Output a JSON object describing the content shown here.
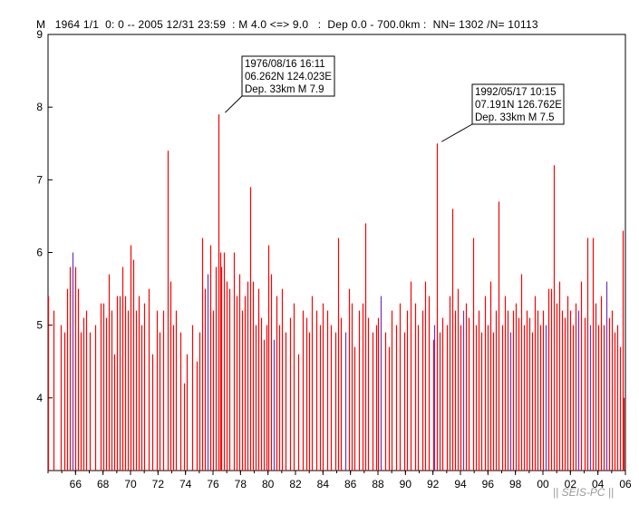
{
  "header": {
    "text": "M   1964 1/1  0: 0 -- 2005 12/31 23:59  : M 4.0 <=> 9.0   :  Dep 0.0 - 700.0km :  NN= 1302 /N= 10113"
  },
  "credit": {
    "text": "|| SEIS-PC ||"
  },
  "chart_data": {
    "type": "bar",
    "title": "",
    "xlabel": "",
    "ylabel": "M",
    "xlim": [
      1964.0,
      2006.0
    ],
    "ylim": [
      3,
      9
    ],
    "x_ticks": [
      {
        "value": 1966,
        "label": "66"
      },
      {
        "value": 1968,
        "label": "68"
      },
      {
        "value": 1970,
        "label": "70"
      },
      {
        "value": 1972,
        "label": "72"
      },
      {
        "value": 1974,
        "label": "74"
      },
      {
        "value": 1976,
        "label": "76"
      },
      {
        "value": 1978,
        "label": "78"
      },
      {
        "value": 1980,
        "label": "80"
      },
      {
        "value": 1982,
        "label": "82"
      },
      {
        "value": 1984,
        "label": "84"
      },
      {
        "value": 1986,
        "label": "86"
      },
      {
        "value": 1988,
        "label": "88"
      },
      {
        "value": 1990,
        "label": "90"
      },
      {
        "value": 1992,
        "label": "92"
      },
      {
        "value": 1994,
        "label": "94"
      },
      {
        "value": 1996,
        "label": "96"
      },
      {
        "value": 1998,
        "label": "98"
      },
      {
        "value": 2000,
        "label": "00"
      },
      {
        "value": 2002,
        "label": "02"
      },
      {
        "value": 2004,
        "label": "04"
      },
      {
        "value": 2006,
        "label": "06"
      }
    ],
    "y_ticks": [
      {
        "value": 4,
        "label": "4"
      },
      {
        "value": 5,
        "label": "5"
      },
      {
        "value": 6,
        "label": "6"
      },
      {
        "value": 7,
        "label": "7"
      },
      {
        "value": 8,
        "label": "8"
      },
      {
        "value": 9,
        "label": "9"
      }
    ],
    "colors": {
      "shallow": "#ff0000",
      "intermediate": "#7030c0",
      "axis": "#000000"
    },
    "events": [
      [
        1964.0,
        5.4,
        "s"
      ],
      [
        1964.4,
        5.2,
        "s"
      ],
      [
        1964.9,
        5.0,
        "s"
      ],
      [
        1965.2,
        4.9,
        "s"
      ],
      [
        1965.4,
        5.5,
        "s"
      ],
      [
        1965.6,
        5.8,
        "s"
      ],
      [
        1965.8,
        6.0,
        "i"
      ],
      [
        1966.0,
        5.8,
        "s"
      ],
      [
        1966.2,
        5.5,
        "s"
      ],
      [
        1966.4,
        4.9,
        "s"
      ],
      [
        1966.6,
        5.1,
        "s"
      ],
      [
        1966.8,
        5.2,
        "s"
      ],
      [
        1967.0,
        4.9,
        "s"
      ],
      [
        1967.4,
        5.0,
        "s"
      ],
      [
        1967.8,
        5.3,
        "s"
      ],
      [
        1968.0,
        5.3,
        "s"
      ],
      [
        1968.2,
        5.1,
        "s"
      ],
      [
        1968.4,
        5.7,
        "s"
      ],
      [
        1968.6,
        5.2,
        "s"
      ],
      [
        1968.8,
        4.6,
        "s"
      ],
      [
        1969.0,
        5.4,
        "s"
      ],
      [
        1969.2,
        5.4,
        "s"
      ],
      [
        1969.4,
        5.8,
        "s"
      ],
      [
        1969.6,
        5.4,
        "s"
      ],
      [
        1969.8,
        5.2,
        "s"
      ],
      [
        1970.0,
        6.1,
        "s"
      ],
      [
        1970.2,
        5.9,
        "s"
      ],
      [
        1970.4,
        5.2,
        "s"
      ],
      [
        1970.6,
        5.4,
        "s"
      ],
      [
        1970.8,
        5.0,
        "s"
      ],
      [
        1971.0,
        5.3,
        "s"
      ],
      [
        1971.3,
        5.5,
        "s"
      ],
      [
        1971.6,
        4.6,
        "s"
      ],
      [
        1971.9,
        5.2,
        "s"
      ],
      [
        1972.1,
        4.9,
        "s"
      ],
      [
        1972.4,
        5.2,
        "s"
      ],
      [
        1972.7,
        7.4,
        "s"
      ],
      [
        1972.9,
        5.6,
        "s"
      ],
      [
        1973.1,
        5.0,
        "s"
      ],
      [
        1973.3,
        5.2,
        "s"
      ],
      [
        1973.6,
        4.9,
        "s"
      ],
      [
        1973.9,
        4.2,
        "s"
      ],
      [
        1974.1,
        4.6,
        "s"
      ],
      [
        1974.5,
        5.0,
        "s"
      ],
      [
        1974.8,
        4.5,
        "s"
      ],
      [
        1975.0,
        4.9,
        "s"
      ],
      [
        1975.2,
        6.2,
        "s"
      ],
      [
        1975.4,
        5.5,
        "s"
      ],
      [
        1975.6,
        5.7,
        "i"
      ],
      [
        1975.8,
        6.1,
        "s"
      ],
      [
        1976.0,
        5.2,
        "s"
      ],
      [
        1976.2,
        5.8,
        "s"
      ],
      [
        1976.4,
        7.9,
        "s"
      ],
      [
        1976.5,
        6.0,
        "s"
      ],
      [
        1976.6,
        5.8,
        "s"
      ],
      [
        1976.8,
        6.0,
        "s"
      ],
      [
        1977.0,
        5.6,
        "s"
      ],
      [
        1977.2,
        5.5,
        "s"
      ],
      [
        1977.5,
        6.0,
        "s"
      ],
      [
        1977.7,
        5.4,
        "s"
      ],
      [
        1977.9,
        5.7,
        "s"
      ],
      [
        1978.1,
        5.2,
        "s"
      ],
      [
        1978.3,
        5.4,
        "s"
      ],
      [
        1978.5,
        5.6,
        "s"
      ],
      [
        1978.7,
        6.9,
        "s"
      ],
      [
        1978.9,
        5.6,
        "s"
      ],
      [
        1979.1,
        5.0,
        "s"
      ],
      [
        1979.3,
        5.5,
        "s"
      ],
      [
        1979.5,
        5.1,
        "s"
      ],
      [
        1979.7,
        4.8,
        "s"
      ],
      [
        1979.9,
        5.0,
        "s"
      ],
      [
        1980.0,
        6.1,
        "s"
      ],
      [
        1980.2,
        5.7,
        "s"
      ],
      [
        1980.4,
        4.8,
        "i"
      ],
      [
        1980.6,
        5.4,
        "s"
      ],
      [
        1980.8,
        5.0,
        "s"
      ],
      [
        1981.0,
        5.5,
        "s"
      ],
      [
        1981.3,
        4.9,
        "s"
      ],
      [
        1981.6,
        5.1,
        "s"
      ],
      [
        1981.9,
        5.3,
        "s"
      ],
      [
        1982.2,
        4.6,
        "s"
      ],
      [
        1982.5,
        5.2,
        "s"
      ],
      [
        1982.8,
        5.1,
        "s"
      ],
      [
        1983.0,
        4.9,
        "s"
      ],
      [
        1983.2,
        5.4,
        "s"
      ],
      [
        1983.5,
        5.2,
        "s"
      ],
      [
        1983.8,
        5.0,
        "s"
      ],
      [
        1984.0,
        5.3,
        "s"
      ],
      [
        1984.3,
        5.2,
        "s"
      ],
      [
        1984.6,
        5.0,
        "s"
      ],
      [
        1984.9,
        4.9,
        "s"
      ],
      [
        1985.1,
        6.2,
        "s"
      ],
      [
        1985.3,
        5.1,
        "s"
      ],
      [
        1985.6,
        4.9,
        "i"
      ],
      [
        1985.9,
        5.5,
        "s"
      ],
      [
        1986.1,
        5.3,
        "s"
      ],
      [
        1986.3,
        4.7,
        "s"
      ],
      [
        1986.6,
        5.2,
        "s"
      ],
      [
        1986.9,
        5.3,
        "s"
      ],
      [
        1987.1,
        6.4,
        "s"
      ],
      [
        1987.3,
        5.1,
        "s"
      ],
      [
        1987.6,
        4.9,
        "s"
      ],
      [
        1987.9,
        5.0,
        "s"
      ],
      [
        1988.0,
        5.1,
        "s"
      ],
      [
        1988.2,
        5.4,
        "i"
      ],
      [
        1988.5,
        4.9,
        "s"
      ],
      [
        1988.8,
        4.7,
        "s"
      ],
      [
        1989.0,
        5.2,
        "s"
      ],
      [
        1989.3,
        5.0,
        "s"
      ],
      [
        1989.6,
        5.3,
        "s"
      ],
      [
        1989.9,
        4.9,
        "s"
      ],
      [
        1990.1,
        5.2,
        "s"
      ],
      [
        1990.4,
        5.6,
        "s"
      ],
      [
        1990.7,
        5.3,
        "s"
      ],
      [
        1990.9,
        5.0,
        "s"
      ],
      [
        1991.2,
        5.2,
        "s"
      ],
      [
        1991.4,
        5.6,
        "s"
      ],
      [
        1991.7,
        5.4,
        "s"
      ],
      [
        1992.0,
        4.8,
        "s"
      ],
      [
        1992.1,
        5.0,
        "i"
      ],
      [
        1992.3,
        7.5,
        "s"
      ],
      [
        1992.5,
        4.9,
        "s"
      ],
      [
        1992.7,
        5.1,
        "s"
      ],
      [
        1993.0,
        5.0,
        "s"
      ],
      [
        1993.2,
        5.4,
        "s"
      ],
      [
        1993.4,
        6.6,
        "s"
      ],
      [
        1993.6,
        5.2,
        "s"
      ],
      [
        1993.8,
        5.5,
        "s"
      ],
      [
        1994.0,
        5.0,
        "s"
      ],
      [
        1994.2,
        5.2,
        "i"
      ],
      [
        1994.4,
        5.3,
        "s"
      ],
      [
        1994.6,
        5.1,
        "s"
      ],
      [
        1994.9,
        6.2,
        "s"
      ],
      [
        1995.1,
        5.0,
        "s"
      ],
      [
        1995.3,
        5.2,
        "s"
      ],
      [
        1995.5,
        4.9,
        "s"
      ],
      [
        1995.8,
        5.4,
        "s"
      ],
      [
        1996.0,
        5.0,
        "s"
      ],
      [
        1996.2,
        5.6,
        "s"
      ],
      [
        1996.4,
        4.9,
        "s"
      ],
      [
        1996.6,
        5.2,
        "s"
      ],
      [
        1996.8,
        6.7,
        "s"
      ],
      [
        1997.0,
        5.0,
        "s"
      ],
      [
        1997.2,
        5.4,
        "s"
      ],
      [
        1997.4,
        5.2,
        "s"
      ],
      [
        1997.6,
        4.9,
        "i"
      ],
      [
        1997.8,
        5.2,
        "s"
      ],
      [
        1998.0,
        5.3,
        "s"
      ],
      [
        1998.2,
        5.1,
        "s"
      ],
      [
        1998.4,
        5.7,
        "s"
      ],
      [
        1998.6,
        5.0,
        "s"
      ],
      [
        1998.8,
        5.2,
        "s"
      ],
      [
        1999.0,
        5.1,
        "s"
      ],
      [
        1999.2,
        4.9,
        "s"
      ],
      [
        1999.4,
        5.4,
        "s"
      ],
      [
        1999.6,
        5.2,
        "s"
      ],
      [
        1999.8,
        5.0,
        "s"
      ],
      [
        2000.0,
        5.2,
        "s"
      ],
      [
        2000.2,
        5.0,
        "i"
      ],
      [
        2000.4,
        5.5,
        "s"
      ],
      [
        2000.6,
        5.5,
        "s"
      ],
      [
        2000.8,
        7.2,
        "s"
      ],
      [
        2001.0,
        5.3,
        "s"
      ],
      [
        2001.2,
        5.6,
        "s"
      ],
      [
        2001.4,
        5.2,
        "s"
      ],
      [
        2001.6,
        5.1,
        "s"
      ],
      [
        2001.8,
        5.4,
        "s"
      ],
      [
        2002.0,
        5.2,
        "s"
      ],
      [
        2002.2,
        5.0,
        "s"
      ],
      [
        2002.4,
        5.3,
        "s"
      ],
      [
        2002.6,
        5.2,
        "i"
      ],
      [
        2002.8,
        5.6,
        "s"
      ],
      [
        2003.0,
        5.1,
        "s"
      ],
      [
        2003.2,
        6.2,
        "s"
      ],
      [
        2003.4,
        5.0,
        "i"
      ],
      [
        2003.6,
        6.2,
        "s"
      ],
      [
        2003.8,
        5.3,
        "s"
      ],
      [
        2004.0,
        5.0,
        "s"
      ],
      [
        2004.2,
        5.4,
        "s"
      ],
      [
        2004.4,
        5.0,
        "s"
      ],
      [
        2004.6,
        5.6,
        "i"
      ],
      [
        2004.8,
        5.1,
        "s"
      ],
      [
        2005.0,
        5.2,
        "s"
      ],
      [
        2005.2,
        4.9,
        "s"
      ],
      [
        2005.4,
        5.0,
        "s"
      ],
      [
        2005.6,
        4.7,
        "s"
      ],
      [
        2005.8,
        6.3,
        "s"
      ],
      [
        2005.9,
        4.0,
        "s"
      ]
    ],
    "annotations": [
      {
        "lines": [
          "1976/08/16 16:11",
          "06.262N  124.023E",
          "Dep. 33km    M 7.9"
        ],
        "x": 1976.62,
        "y": 7.9
      },
      {
        "lines": [
          "1992/05/17 10:15",
          "07.191N  126.762E",
          "Dep. 33km    M 7.5"
        ],
        "x": 1992.37,
        "y": 7.5
      }
    ]
  }
}
